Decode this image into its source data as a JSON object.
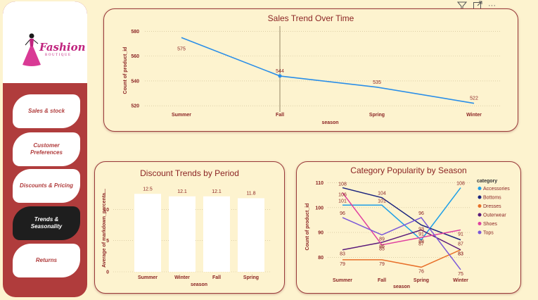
{
  "brand": {
    "name": "Fashion",
    "sub": "BOUTIQUE"
  },
  "nav": [
    {
      "label": "Sales & stock",
      "active": false
    },
    {
      "label": "Customer Preferences",
      "active": false
    },
    {
      "label": "Discounts & Pricing",
      "active": false
    },
    {
      "label": "Trends & Seasonality",
      "active": true
    },
    {
      "label": "Returns",
      "active": false
    }
  ],
  "toolbar": {
    "filter_icon": "filter-icon",
    "focus_icon": "focus-mode-icon",
    "more_label": "···"
  },
  "colors": {
    "accent": "#b03c3c",
    "background": "#fdf3cf",
    "line": "#2a8ee8"
  },
  "chart_data": [
    {
      "type": "line",
      "title": "Sales Trend Over Time",
      "xlabel": "season",
      "ylabel": "Count of product_id",
      "categories": [
        "Summer",
        "Fall",
        "Spring",
        "Winter"
      ],
      "values": [
        575,
        544,
        535,
        522
      ],
      "ylim": [
        515,
        582
      ],
      "yticks": [
        520,
        540,
        560,
        580
      ],
      "grid": true
    },
    {
      "type": "bar",
      "title": "Discount Trends by Period",
      "xlabel": "season",
      "ylabel": "Average of markdown_percenta...",
      "categories": [
        "Summer",
        "Winter",
        "Fall",
        "Spring"
      ],
      "values": [
        12.5,
        12.1,
        12.1,
        11.8
      ],
      "ylim": [
        0,
        14
      ],
      "yticks": [
        0,
        5,
        10
      ],
      "grid": true
    },
    {
      "type": "line",
      "title": "Category Popularity by Season",
      "xlabel": "season",
      "ylabel": "Count of product_id",
      "legend_title": "category",
      "legend_position": "right",
      "categories": [
        "Summer",
        "Fall",
        "Spring",
        "Winter"
      ],
      "ylim": [
        73,
        111
      ],
      "yticks": [
        80,
        90,
        100,
        110
      ],
      "series": [
        {
          "name": "Accessories",
          "color": "#1e9fe8",
          "values": [
            101,
            101,
            87,
            108
          ]
        },
        {
          "name": "Bottoms",
          "color": "#1a237e",
          "values": [
            108,
            104,
            93,
            87
          ]
        },
        {
          "name": "Dresses",
          "color": "#e8702a",
          "values": [
            79,
            79,
            76,
            83
          ]
        },
        {
          "name": "Outerwear",
          "color": "#5b1a7a",
          "values": [
            83,
            86,
            91,
            83
          ]
        },
        {
          "name": "Shoes",
          "color": "#e040a0",
          "values": [
            106,
            85,
            88,
            91
          ]
        },
        {
          "name": "Tops",
          "color": "#7b58d8",
          "values": [
            96,
            89,
            96,
            75
          ]
        }
      ]
    }
  ]
}
